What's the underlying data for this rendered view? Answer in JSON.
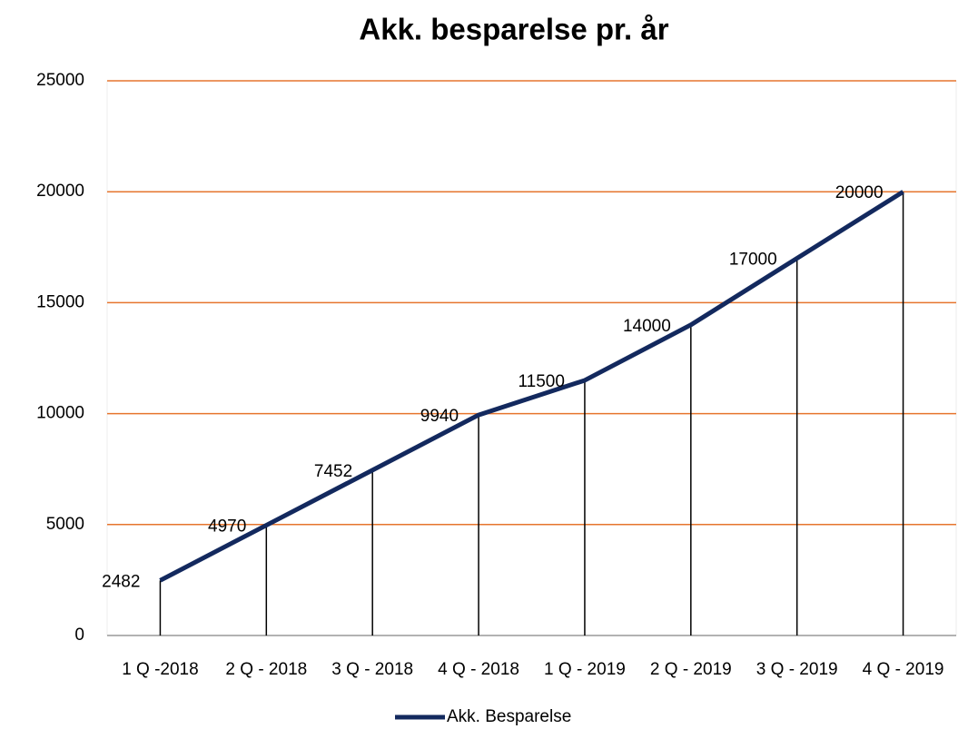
{
  "chart_data": {
    "type": "line",
    "title": "Akk. besparelse pr. år",
    "categories": [
      "1 Q -2018",
      "2 Q - 2018",
      "3 Q - 2018",
      "4 Q - 2018",
      "1 Q - 2019",
      "2 Q - 2019",
      "3 Q - 2019",
      "4 Q - 2019"
    ],
    "series": [
      {
        "name": "Akk. Besparelse",
        "color": "#13295e",
        "values": [
          2482,
          4970,
          7452,
          9940,
          11500,
          14000,
          17000,
          20000
        ]
      }
    ],
    "ylim": [
      0,
      25000
    ],
    "yticks": [
      0,
      5000,
      10000,
      15000,
      20000,
      25000
    ],
    "grid": true,
    "grid_color": "#e6752e",
    "legend": "bottom"
  }
}
